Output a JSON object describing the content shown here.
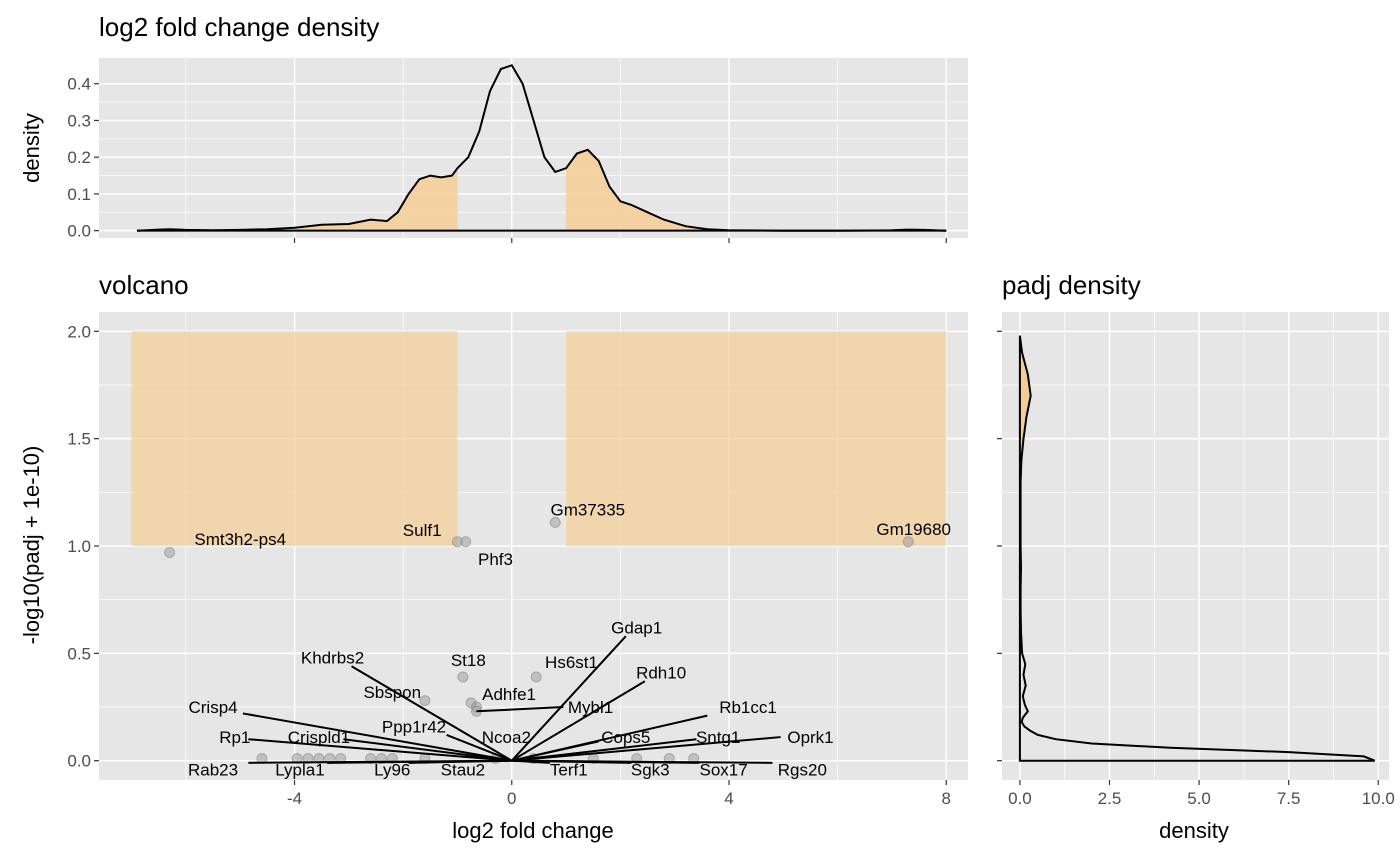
{
  "colors": {
    "panel_bg": "#E6E6E6",
    "grid": "#FFFFFF",
    "region_fill": "#F5CD94",
    "point": "#999999",
    "line": "#000000"
  },
  "chart_data": [
    {
      "id": "density",
      "type": "area",
      "title": "log2 fold change density",
      "xlabel": "",
      "ylabel": "density",
      "xlim": [
        -7.6,
        8.4
      ],
      "ylim": [
        -0.02,
        0.47
      ],
      "xticks": [
        -4,
        0,
        4,
        8
      ],
      "yticks": [
        0.0,
        0.1,
        0.2,
        0.3,
        0.4
      ],
      "ytick_labels": [
        "0.0",
        "0.1",
        "0.2",
        "0.3",
        "0.4"
      ],
      "x": [
        -6.9,
        -6.5,
        -6.3,
        -6.0,
        -5.5,
        -5.0,
        -4.5,
        -4.0,
        -3.5,
        -3.0,
        -2.6,
        -2.3,
        -2.1,
        -1.9,
        -1.7,
        -1.5,
        -1.3,
        -1.1,
        -1.0,
        -0.8,
        -0.6,
        -0.4,
        -0.2,
        0.0,
        0.2,
        0.4,
        0.6,
        0.8,
        1.0,
        1.2,
        1.4,
        1.6,
        1.8,
        2.0,
        2.2,
        2.5,
        2.8,
        3.2,
        3.6,
        4.0,
        5.0,
        6.0,
        7.0,
        7.3,
        7.6,
        8.0
      ],
      "y": [
        0.0,
        0.003,
        0.004,
        0.002,
        0.001,
        0.002,
        0.004,
        0.008,
        0.016,
        0.018,
        0.03,
        0.026,
        0.05,
        0.1,
        0.14,
        0.15,
        0.145,
        0.15,
        0.17,
        0.2,
        0.27,
        0.38,
        0.44,
        0.45,
        0.4,
        0.3,
        0.2,
        0.16,
        0.17,
        0.21,
        0.22,
        0.19,
        0.12,
        0.08,
        0.07,
        0.05,
        0.03,
        0.012,
        0.004,
        0.001,
        0.0,
        0.0,
        0.001,
        0.003,
        0.002,
        0.0
      ],
      "shaded_ranges": [
        [
          -7.0,
          -1.0
        ],
        [
          1.0,
          8.0
        ]
      ]
    },
    {
      "id": "volcano",
      "type": "scatter",
      "title": "volcano",
      "xlabel": "log2 fold change",
      "ylabel": "-log10(padj + 1e-10)",
      "xlim": [
        -7.6,
        8.4
      ],
      "ylim": [
        -0.09,
        2.09
      ],
      "xticks": [
        -4,
        0,
        4,
        8
      ],
      "xtick_labels": [
        "-4",
        "0",
        "4",
        "8"
      ],
      "yticks": [
        0.0,
        0.5,
        1.0,
        1.5,
        2.0
      ],
      "ytick_labels": [
        "0.0",
        "0.5",
        "1.0",
        "1.5",
        "2.0"
      ],
      "shaded_regions": [
        {
          "x": [
            -7.0,
            -1.0
          ],
          "y": [
            1.0,
            2.0
          ]
        },
        {
          "x": [
            1.0,
            8.0
          ],
          "y": [
            1.0,
            2.0
          ]
        }
      ],
      "points": [
        {
          "x": -6.3,
          "y": 0.97
        },
        {
          "x": -1.0,
          "y": 1.02
        },
        {
          "x": -0.85,
          "y": 1.02
        },
        {
          "x": 0.8,
          "y": 1.11
        },
        {
          "x": 7.3,
          "y": 1.02
        },
        {
          "x": -0.9,
          "y": 0.39
        },
        {
          "x": 0.45,
          "y": 0.39
        },
        {
          "x": -1.6,
          "y": 0.28
        },
        {
          "x": -0.75,
          "y": 0.27
        },
        {
          "x": -0.65,
          "y": 0.25
        },
        {
          "x": -0.65,
          "y": 0.23
        },
        {
          "x": -4.6,
          "y": 0.01
        },
        {
          "x": -3.95,
          "y": 0.01
        },
        {
          "x": -3.75,
          "y": 0.01
        },
        {
          "x": -3.55,
          "y": 0.01
        },
        {
          "x": -3.35,
          "y": 0.01
        },
        {
          "x": -3.15,
          "y": 0.01
        },
        {
          "x": -2.6,
          "y": 0.01
        },
        {
          "x": -2.4,
          "y": 0.01
        },
        {
          "x": -2.2,
          "y": 0.01
        },
        {
          "x": -1.6,
          "y": 0.01
        },
        {
          "x": -0.3,
          "y": 0.01
        },
        {
          "x": 0.4,
          "y": 0.01
        },
        {
          "x": 1.5,
          "y": 0.01
        },
        {
          "x": 2.3,
          "y": 0.01
        },
        {
          "x": 2.9,
          "y": 0.01
        },
        {
          "x": 3.35,
          "y": 0.01
        }
      ],
      "labels": [
        {
          "text": "Smt3h2-ps4",
          "x": -6.3,
          "y": 0.97,
          "lx": -5.0,
          "ly": 1.033,
          "anchor": "middle"
        },
        {
          "text": "Sulf1",
          "x": -1.0,
          "y": 1.02,
          "lx": -1.65,
          "ly": 1.075,
          "anchor": "middle"
        },
        {
          "text": "Phf3",
          "x": -0.85,
          "y": 1.02,
          "lx": -0.3,
          "ly": 0.94,
          "anchor": "middle"
        },
        {
          "text": "Gm37335",
          "x": 0.8,
          "y": 1.11,
          "lx": 1.4,
          "ly": 1.17,
          "anchor": "middle"
        },
        {
          "text": "Gm19680",
          "x": 7.3,
          "y": 1.02,
          "lx": 7.4,
          "ly": 1.08,
          "anchor": "middle"
        },
        {
          "text": "Gdap1",
          "x": 0.0,
          "y": 0.0,
          "lx": 2.3,
          "ly": 0.62,
          "anchor": "middle",
          "tx": 2.1,
          "ty": 0.58
        },
        {
          "text": "Khdrbs2",
          "x": 0.0,
          "y": 0.0,
          "lx": -3.3,
          "ly": 0.48,
          "anchor": "middle",
          "tx": -2.95,
          "ty": 0.44
        },
        {
          "text": "St18",
          "x": -0.9,
          "y": 0.39,
          "lx": -0.8,
          "ly": 0.47,
          "anchor": "middle"
        },
        {
          "text": "Hs6st1",
          "x": 0.45,
          "y": 0.39,
          "lx": 1.1,
          "ly": 0.46,
          "anchor": "middle"
        },
        {
          "text": "Rdh10",
          "x": 0.0,
          "y": 0.0,
          "lx": 2.75,
          "ly": 0.41,
          "anchor": "middle",
          "tx": 2.45,
          "ty": 0.37
        },
        {
          "text": "Sbspon",
          "x": -1.6,
          "y": 0.28,
          "lx": -2.2,
          "ly": 0.32,
          "anchor": "middle"
        },
        {
          "text": "Adhfe1",
          "x": -0.75,
          "y": 0.27,
          "lx": -0.05,
          "ly": 0.31,
          "anchor": "middle"
        },
        {
          "text": "Mybl1",
          "x": -0.65,
          "y": 0.23,
          "lx": 1.45,
          "ly": 0.25,
          "anchor": "middle",
          "tx": 0.95,
          "ty": 0.25
        },
        {
          "text": "Crisp4",
          "x": 0.0,
          "y": 0.0,
          "lx": -5.5,
          "ly": 0.25,
          "anchor": "middle",
          "tx": -4.95,
          "ty": 0.22
        },
        {
          "text": "Rb1cc1",
          "x": 0.0,
          "y": 0.0,
          "lx": 4.35,
          "ly": 0.25,
          "anchor": "middle",
          "tx": 3.6,
          "ty": 0.21
        },
        {
          "text": "Ppp1r42",
          "x": 0.0,
          "y": 0.0,
          "lx": -1.8,
          "ly": 0.16,
          "anchor": "middle",
          "tx": -1.2,
          "ty": 0.12
        },
        {
          "text": "Rp1",
          "x": 0.0,
          "y": 0.0,
          "lx": -5.1,
          "ly": 0.11,
          "anchor": "middle",
          "tx": -4.85,
          "ty": 0.1
        },
        {
          "text": "Crispld1",
          "x": 0.0,
          "y": 0.0,
          "lx": -3.55,
          "ly": 0.11,
          "anchor": "middle",
          "tx": -3.1,
          "ty": 0.1
        },
        {
          "text": "Ncoa2",
          "x": 0.0,
          "y": 0.0,
          "lx": -0.1,
          "ly": 0.11,
          "anchor": "middle"
        },
        {
          "text": "Cops5",
          "x": 0.0,
          "y": 0.0,
          "lx": 2.1,
          "ly": 0.11,
          "anchor": "middle",
          "tx": 1.6,
          "ty": 0.09
        },
        {
          "text": "Sntg1",
          "x": 0.0,
          "y": 0.0,
          "lx": 3.8,
          "ly": 0.11,
          "anchor": "middle",
          "tx": 3.4,
          "ty": 0.1
        },
        {
          "text": "Oprk1",
          "x": 0.0,
          "y": 0.0,
          "lx": 5.5,
          "ly": 0.11,
          "anchor": "middle",
          "tx": 4.95,
          "ty": 0.11
        },
        {
          "text": "Rab23",
          "x": 0.0,
          "y": 0.0,
          "lx": -5.5,
          "ly": -0.04,
          "anchor": "middle",
          "tx": -4.85,
          "ty": -0.01
        },
        {
          "text": "Lypla1",
          "x": 0.0,
          "y": 0.0,
          "lx": -3.9,
          "ly": -0.04,
          "anchor": "middle",
          "tx": -3.4,
          "ty": -0.01
        },
        {
          "text": "Ly96",
          "x": 0.0,
          "y": 0.0,
          "lx": -2.2,
          "ly": -0.04,
          "anchor": "middle",
          "tx": -1.9,
          "ty": -0.01
        },
        {
          "text": "Stau2",
          "x": 0.0,
          "y": 0.0,
          "lx": -0.9,
          "ly": -0.04,
          "anchor": "middle"
        },
        {
          "text": "Terf1",
          "x": 0.0,
          "y": 0.0,
          "lx": 1.05,
          "ly": -0.04,
          "anchor": "middle",
          "tx": 0.7,
          "ty": -0.01
        },
        {
          "text": "Sgk3",
          "x": 0.0,
          "y": 0.0,
          "lx": 2.55,
          "ly": -0.04,
          "anchor": "middle",
          "tx": 2.2,
          "ty": -0.01
        },
        {
          "text": "Sox17",
          "x": 0.0,
          "y": 0.0,
          "lx": 3.9,
          "ly": -0.04,
          "anchor": "middle",
          "tx": 3.45,
          "ty": -0.01
        },
        {
          "text": "Rgs20",
          "x": 0.0,
          "y": 0.0,
          "lx": 5.35,
          "ly": -0.04,
          "anchor": "middle",
          "tx": 4.8,
          "ty": -0.01
        }
      ]
    },
    {
      "id": "padj",
      "type": "area",
      "orientation": "horizontal",
      "title": "padj density",
      "xlabel": "density",
      "ylabel": "",
      "xlim": [
        -0.5,
        10.3
      ],
      "ylim": [
        -0.09,
        2.09
      ],
      "xticks": [
        0.0,
        2.5,
        5.0,
        7.5,
        10.0
      ],
      "xtick_labels": [
        "0.0",
        "2.5",
        "5.0",
        "7.5",
        "10.0"
      ],
      "yticks": [
        0.0,
        0.5,
        1.0,
        1.5,
        2.0
      ],
      "padj": [
        -0.0,
        0.02,
        0.04,
        0.06,
        0.08,
        0.1,
        0.12,
        0.14,
        0.16,
        0.18,
        0.2,
        0.23,
        0.26,
        0.3,
        0.35,
        0.4,
        0.45,
        0.5,
        0.6,
        0.7,
        0.8,
        0.9,
        1.0,
        1.1,
        1.2,
        1.3,
        1.4,
        1.5,
        1.6,
        1.7,
        1.8,
        1.9,
        1.98
      ],
      "density": [
        9.9,
        9.6,
        7.5,
        4.2,
        2.0,
        1.0,
        0.5,
        0.28,
        0.12,
        0.05,
        0.08,
        0.22,
        0.14,
        0.08,
        0.16,
        0.1,
        0.15,
        0.06,
        0.03,
        0.02,
        0.02,
        0.03,
        0.02,
        0.02,
        0.02,
        0.02,
        0.04,
        0.1,
        0.18,
        0.3,
        0.22,
        0.06,
        0.0
      ],
      "shaded_range": [
        1.0,
        2.0
      ]
    }
  ]
}
